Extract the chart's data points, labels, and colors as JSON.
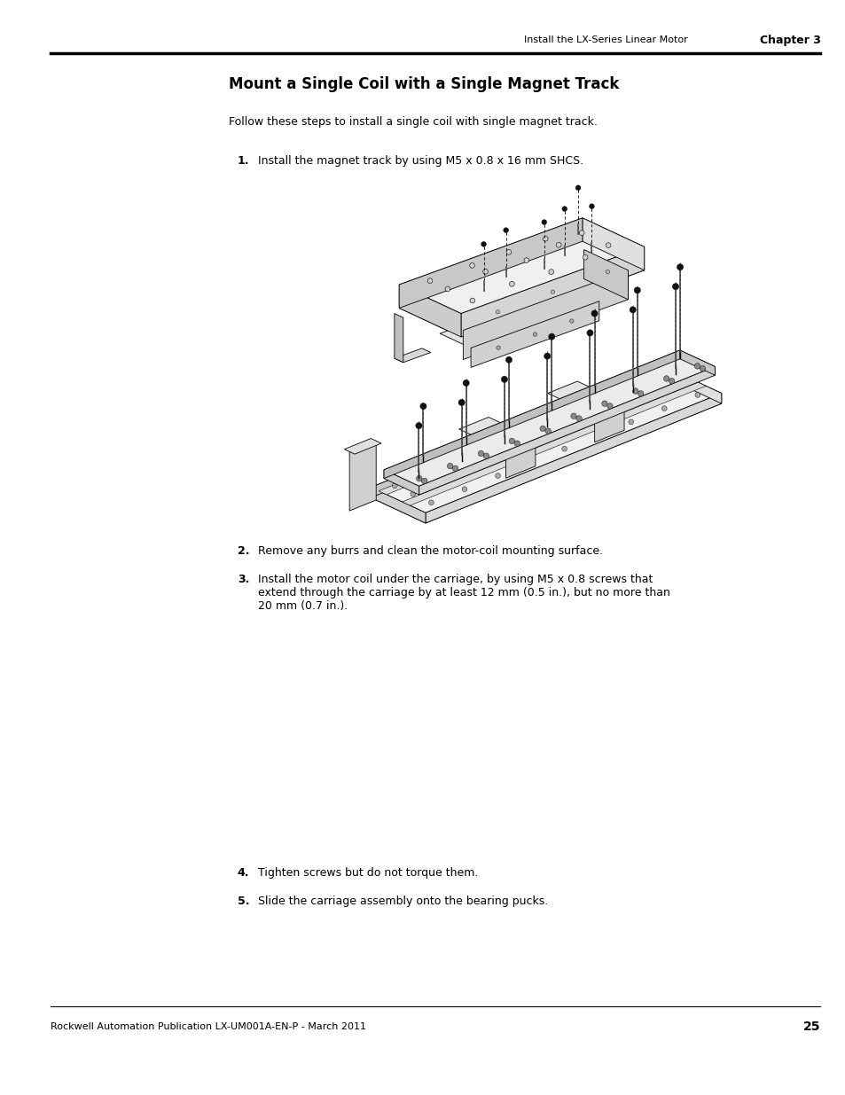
{
  "page_width": 9.54,
  "page_height": 12.35,
  "background_color": "#ffffff",
  "header_text": "Install the LX-Series Linear Motor",
  "header_bold": "Chapter 3",
  "title": "Mount a Single Coil with a Single Magnet Track",
  "intro_text": "Follow these steps to install a single coil with single magnet track.",
  "steps": [
    "Install the magnet track by using M5 x 0.8 x 16 mm SHCS.",
    "Remove any burrs and clean the motor-coil mounting surface.",
    "Install the motor coil under the carriage, by using M5 x 0.8 screws that\nextend through the carriage by at least 12 mm (0.5 in.), but no more than\n20 mm (0.7 in.).",
    "Tighten screws but do not torque them.",
    "Slide the carriage assembly onto the bearing pucks."
  ],
  "footer_text": "Rockwell Automation Publication LX-UM001A-EN-P - March 2011",
  "footer_page": "25",
  "title_fontsize": 12,
  "body_fontsize": 9,
  "step_fontsize": 9,
  "header_fontsize": 8,
  "footer_fontsize": 8
}
